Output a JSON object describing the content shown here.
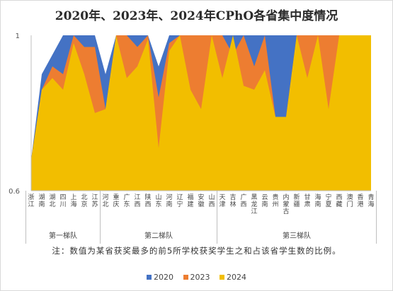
{
  "chart_data": {
    "type": "area",
    "title": "2020年、2023年、2024年CPhO各省集中度情况",
    "note": "注：数值为某省获奖最多的前5所学校获奖学生之和占该省学生数的比例。",
    "ylim": [
      0.6,
      1
    ],
    "yticks": [
      0.6,
      1
    ],
    "grid": false,
    "legend_position": "bottom",
    "categories": [
      "浙江",
      "湖南",
      "湖北",
      "四川",
      "上海",
      "北京",
      "江苏",
      "河北",
      "重庆",
      "广东",
      "江西",
      "陕西",
      "山东",
      "河南",
      "辽宁",
      "福建",
      "安徽",
      "山西",
      "天津",
      "吉林",
      "广西",
      "黑龙江",
      "云南",
      "贵州",
      "内蒙古",
      "新疆",
      "甘肃",
      "海南",
      "宁夏",
      "西藏",
      "澳门",
      "香港",
      "青海"
    ],
    "groups": [
      {
        "name": "第一梯队",
        "start": 0,
        "end": 6
      },
      {
        "name": "第二梯队",
        "start": 7,
        "end": 17
      },
      {
        "name": "第三梯队",
        "start": 18,
        "end": 32
      }
    ],
    "series": [
      {
        "name": "2020",
        "color": "#4472C4",
        "values": [
          0.68,
          0.9,
          0.95,
          1,
          1,
          1,
          1,
          0.9,
          1,
          1,
          1,
          1,
          0.92,
          1,
          1,
          1,
          1,
          1,
          1,
          1,
          1,
          1,
          1,
          1,
          1,
          1,
          1,
          1,
          1,
          1,
          1,
          1,
          1
        ]
      },
      {
        "name": "2023",
        "color": "#ED7D31",
        "values": [
          0.68,
          0.86,
          0.92,
          0.9,
          1,
          0.97,
          0.97,
          0.81,
          1,
          1,
          0.97,
          1,
          0.84,
          0.98,
          1,
          1,
          1,
          1,
          1,
          0.95,
          1,
          0.92,
          1,
          0.79,
          0.79,
          1,
          1,
          1,
          1,
          1,
          1,
          1,
          1
        ]
      },
      {
        "name": "2024",
        "color": "#F2BE00",
        "values": [
          0.68,
          0.86,
          0.89,
          0.86,
          0.98,
          0.9,
          0.8,
          0.81,
          1,
          0.89,
          0.92,
          0.99,
          0.71,
          0.96,
          1,
          0.86,
          0.81,
          1,
          0.89,
          1,
          0.87,
          0.86,
          0.91,
          0.79,
          0.79,
          1,
          0.89,
          1,
          0.81,
          1,
          1,
          1,
          1
        ]
      }
    ]
  }
}
